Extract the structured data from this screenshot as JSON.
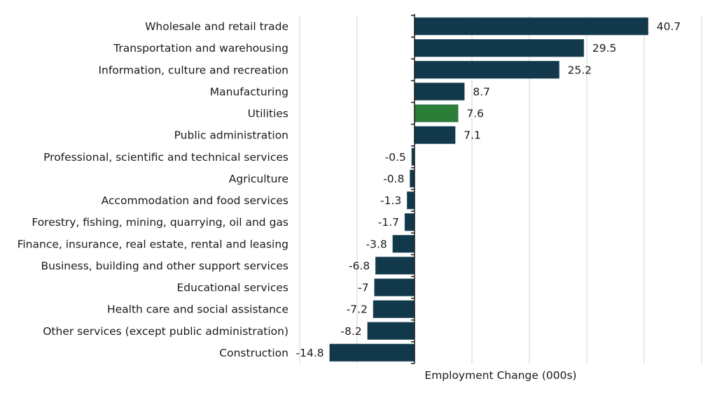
{
  "chart_data": {
    "type": "bar",
    "orientation": "horizontal",
    "title": "",
    "xlabel": "Employment Change (000s)",
    "ylabel": "",
    "xlim": [
      -20,
      50
    ],
    "x_gridlines": [
      -20,
      -10,
      0,
      10,
      20,
      30,
      40,
      50
    ],
    "grid": true,
    "show_tick_labels": false,
    "categories": [
      "Wholesale and retail trade",
      "Transportation and warehousing",
      "Information, culture and recreation",
      "Manufacturing",
      "Utilities",
      "Public administration",
      "Professional, scientific and technical services",
      "Agriculture",
      "Accommodation and food services",
      "Forestry, fishing, mining, quarrying, oil and gas",
      "Finance, insurance, real estate, rental and leasing",
      "Business, building and other support services",
      "Educational services",
      "Health care and social assistance",
      "Other services (except public administration)",
      "Construction"
    ],
    "values": [
      40.7,
      29.5,
      25.2,
      8.7,
      7.6,
      7.1,
      -0.5,
      -0.8,
      -1.3,
      -1.7,
      -3.8,
      -6.8,
      -7,
      -7.2,
      -8.2,
      -14.8
    ],
    "value_labels": [
      "40.7",
      "29.5",
      "25.2",
      "8.7",
      "7.6",
      "7.1",
      "-0.5",
      "-0.8",
      "-1.3",
      "-1.7",
      "-3.8",
      "-6.8",
      "-7",
      "-7.2",
      "-8.2",
      "-14.8"
    ],
    "highlight_category": "Utilities",
    "colors": {
      "default_bar": "#12384b",
      "highlight_bar": "#2b7e37",
      "grid": "#d9d9d9",
      "axis": "#1a1a1a",
      "text": "#1a1a1a"
    }
  }
}
